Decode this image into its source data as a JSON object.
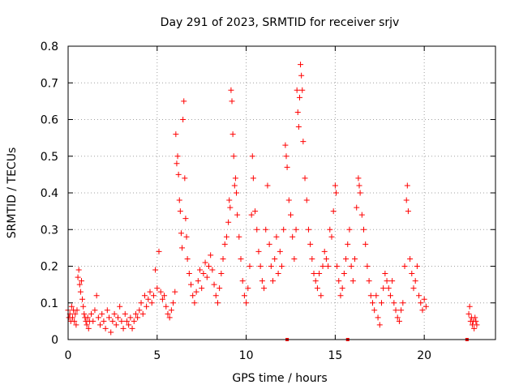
{
  "chart_data": {
    "type": "scatter",
    "title": "Day 291 of 2023, SRMTID for receiver srjv",
    "xlabel": "GPS time / hours",
    "ylabel": "SRMTID / TECUs",
    "xlim": [
      0,
      24
    ],
    "ylim": [
      0,
      0.8
    ],
    "xticks": [
      0,
      5,
      10,
      15,
      20
    ],
    "xtick_labels": [
      "0",
      "5",
      "10",
      "15",
      "20"
    ],
    "yticks": [
      0,
      0.1,
      0.2,
      0.3,
      0.4,
      0.5,
      0.6,
      0.7,
      0.8
    ],
    "ytick_labels": [
      "0",
      "0.1",
      "0.2",
      "0.3",
      "0.4",
      "0.5",
      "0.6",
      "0.7",
      "0.8"
    ],
    "grid": true,
    "marker": "+",
    "series": [
      {
        "name": "SRMTID",
        "color": "#ff0000",
        "points": [
          [
            0.0,
            0.08
          ],
          [
            0.05,
            0.06
          ],
          [
            0.1,
            0.07
          ],
          [
            0.15,
            0.05
          ],
          [
            0.2,
            0.09
          ],
          [
            0.25,
            0.06
          ],
          [
            0.3,
            0.08
          ],
          [
            0.35,
            0.05
          ],
          [
            0.4,
            0.07
          ],
          [
            0.45,
            0.04
          ],
          [
            0.5,
            0.08
          ],
          [
            0.55,
            0.17
          ],
          [
            0.6,
            0.19
          ],
          [
            0.65,
            0.15
          ],
          [
            0.7,
            0.13
          ],
          [
            0.75,
            0.16
          ],
          [
            0.8,
            0.11
          ],
          [
            0.85,
            0.09
          ],
          [
            0.9,
            0.07
          ],
          [
            0.95,
            0.06
          ],
          [
            1.0,
            0.05
          ],
          [
            1.05,
            0.04
          ],
          [
            1.1,
            0.06
          ],
          [
            1.15,
            0.03
          ],
          [
            1.2,
            0.05
          ],
          [
            1.3,
            0.07
          ],
          [
            1.4,
            0.05
          ],
          [
            1.5,
            0.08
          ],
          [
            1.6,
            0.12
          ],
          [
            1.7,
            0.06
          ],
          [
            1.8,
            0.04
          ],
          [
            1.9,
            0.07
          ],
          [
            2.0,
            0.05
          ],
          [
            2.1,
            0.03
          ],
          [
            2.2,
            0.08
          ],
          [
            2.3,
            0.06
          ],
          [
            2.4,
            0.02
          ],
          [
            2.5,
            0.05
          ],
          [
            2.6,
            0.07
          ],
          [
            2.7,
            0.04
          ],
          [
            2.8,
            0.06
          ],
          [
            2.9,
            0.09
          ],
          [
            3.0,
            0.05
          ],
          [
            3.1,
            0.03
          ],
          [
            3.2,
            0.07
          ],
          [
            3.3,
            0.05
          ],
          [
            3.4,
            0.04
          ],
          [
            3.5,
            0.06
          ],
          [
            3.6,
            0.03
          ],
          [
            3.7,
            0.05
          ],
          [
            3.8,
            0.07
          ],
          [
            3.9,
            0.06
          ],
          [
            4.0,
            0.08
          ],
          [
            4.1,
            0.1
          ],
          [
            4.2,
            0.07
          ],
          [
            4.3,
            0.12
          ],
          [
            4.4,
            0.09
          ],
          [
            4.5,
            0.11
          ],
          [
            4.6,
            0.13
          ],
          [
            4.7,
            0.1
          ],
          [
            4.8,
            0.12
          ],
          [
            4.9,
            0.19
          ],
          [
            5.0,
            0.14
          ],
          [
            5.1,
            0.24
          ],
          [
            5.2,
            0.13
          ],
          [
            5.3,
            0.11
          ],
          [
            5.4,
            0.12
          ],
          [
            5.5,
            0.09
          ],
          [
            5.6,
            0.07
          ],
          [
            5.7,
            0.06
          ],
          [
            5.8,
            0.08
          ],
          [
            5.9,
            0.1
          ],
          [
            6.0,
            0.13
          ],
          [
            6.05,
            0.56
          ],
          [
            6.1,
            0.48
          ],
          [
            6.15,
            0.5
          ],
          [
            6.2,
            0.45
          ],
          [
            6.25,
            0.38
          ],
          [
            6.3,
            0.35
          ],
          [
            6.35,
            0.29
          ],
          [
            6.4,
            0.25
          ],
          [
            6.45,
            0.6
          ],
          [
            6.5,
            0.65
          ],
          [
            6.55,
            0.44
          ],
          [
            6.6,
            0.33
          ],
          [
            6.65,
            0.28
          ],
          [
            6.7,
            0.22
          ],
          [
            6.8,
            0.18
          ],
          [
            6.9,
            0.15
          ],
          [
            7.0,
            0.12
          ],
          [
            7.1,
            0.1
          ],
          [
            7.2,
            0.13
          ],
          [
            7.3,
            0.16
          ],
          [
            7.4,
            0.19
          ],
          [
            7.5,
            0.14
          ],
          [
            7.6,
            0.18
          ],
          [
            7.7,
            0.21
          ],
          [
            7.8,
            0.17
          ],
          [
            7.9,
            0.2
          ],
          [
            8.0,
            0.23
          ],
          [
            8.1,
            0.19
          ],
          [
            8.2,
            0.15
          ],
          [
            8.3,
            0.12
          ],
          [
            8.4,
            0.1
          ],
          [
            8.5,
            0.14
          ],
          [
            8.6,
            0.18
          ],
          [
            8.7,
            0.22
          ],
          [
            8.8,
            0.26
          ],
          [
            8.9,
            0.28
          ],
          [
            9.0,
            0.32
          ],
          [
            9.05,
            0.38
          ],
          [
            9.1,
            0.36
          ],
          [
            9.15,
            0.68
          ],
          [
            9.2,
            0.65
          ],
          [
            9.25,
            0.56
          ],
          [
            9.3,
            0.5
          ],
          [
            9.35,
            0.42
          ],
          [
            9.4,
            0.44
          ],
          [
            9.45,
            0.4
          ],
          [
            9.5,
            0.34
          ],
          [
            9.6,
            0.28
          ],
          [
            9.7,
            0.22
          ],
          [
            9.8,
            0.16
          ],
          [
            9.9,
            0.12
          ],
          [
            10.0,
            0.1
          ],
          [
            10.1,
            0.14
          ],
          [
            10.2,
            0.2
          ],
          [
            10.3,
            0.34
          ],
          [
            10.35,
            0.5
          ],
          [
            10.4,
            0.44
          ],
          [
            10.5,
            0.35
          ],
          [
            10.6,
            0.3
          ],
          [
            10.7,
            0.24
          ],
          [
            10.8,
            0.2
          ],
          [
            10.9,
            0.16
          ],
          [
            11.0,
            0.14
          ],
          [
            11.1,
            0.3
          ],
          [
            11.2,
            0.42
          ],
          [
            11.3,
            0.26
          ],
          [
            11.4,
            0.2
          ],
          [
            11.5,
            0.16
          ],
          [
            11.6,
            0.22
          ],
          [
            11.7,
            0.28
          ],
          [
            11.8,
            0.18
          ],
          [
            11.9,
            0.24
          ],
          [
            12.0,
            0.2
          ],
          [
            12.1,
            0.3
          ],
          [
            12.2,
            0.53
          ],
          [
            12.25,
            0.5
          ],
          [
            12.3,
            0.47
          ],
          [
            12.4,
            0.38
          ],
          [
            12.5,
            0.34
          ],
          [
            12.6,
            0.28
          ],
          [
            12.7,
            0.22
          ],
          [
            12.8,
            0.3
          ],
          [
            12.85,
            0.68
          ],
          [
            12.9,
            0.62
          ],
          [
            12.95,
            0.58
          ],
          [
            13.0,
            0.66
          ],
          [
            13.05,
            0.75
          ],
          [
            13.1,
            0.72
          ],
          [
            13.15,
            0.68
          ],
          [
            13.2,
            0.54
          ],
          [
            13.3,
            0.44
          ],
          [
            13.4,
            0.38
          ],
          [
            13.5,
            0.3
          ],
          [
            13.6,
            0.26
          ],
          [
            13.7,
            0.22
          ],
          [
            13.8,
            0.18
          ],
          [
            13.9,
            0.16
          ],
          [
            14.0,
            0.14
          ],
          [
            14.1,
            0.18
          ],
          [
            14.2,
            0.12
          ],
          [
            14.3,
            0.2
          ],
          [
            14.4,
            0.24
          ],
          [
            14.5,
            0.22
          ],
          [
            14.6,
            0.2
          ],
          [
            14.7,
            0.3
          ],
          [
            14.8,
            0.28
          ],
          [
            14.9,
            0.35
          ],
          [
            15.0,
            0.42
          ],
          [
            15.05,
            0.4
          ],
          [
            15.1,
            0.2
          ],
          [
            15.2,
            0.16
          ],
          [
            15.3,
            0.12
          ],
          [
            15.4,
            0.14
          ],
          [
            15.5,
            0.18
          ],
          [
            15.6,
            0.22
          ],
          [
            15.7,
            0.26
          ],
          [
            15.8,
            0.3
          ],
          [
            15.9,
            0.2
          ],
          [
            16.0,
            0.16
          ],
          [
            16.1,
            0.22
          ],
          [
            16.2,
            0.36
          ],
          [
            16.3,
            0.44
          ],
          [
            16.35,
            0.42
          ],
          [
            16.4,
            0.4
          ],
          [
            16.5,
            0.34
          ],
          [
            16.6,
            0.3
          ],
          [
            16.7,
            0.26
          ],
          [
            16.8,
            0.2
          ],
          [
            16.9,
            0.16
          ],
          [
            17.0,
            0.12
          ],
          [
            17.1,
            0.1
          ],
          [
            17.2,
            0.08
          ],
          [
            17.3,
            0.12
          ],
          [
            17.4,
            0.06
          ],
          [
            17.5,
            0.04
          ],
          [
            17.6,
            0.1
          ],
          [
            17.7,
            0.14
          ],
          [
            17.8,
            0.18
          ],
          [
            17.9,
            0.16
          ],
          [
            18.0,
            0.14
          ],
          [
            18.1,
            0.12
          ],
          [
            18.2,
            0.16
          ],
          [
            18.3,
            0.1
          ],
          [
            18.4,
            0.08
          ],
          [
            18.5,
            0.06
          ],
          [
            18.6,
            0.05
          ],
          [
            18.7,
            0.08
          ],
          [
            18.8,
            0.1
          ],
          [
            18.9,
            0.2
          ],
          [
            19.0,
            0.38
          ],
          [
            19.05,
            0.42
          ],
          [
            19.1,
            0.35
          ],
          [
            19.2,
            0.22
          ],
          [
            19.3,
            0.18
          ],
          [
            19.4,
            0.14
          ],
          [
            19.5,
            0.16
          ],
          [
            19.6,
            0.2
          ],
          [
            19.7,
            0.12
          ],
          [
            19.8,
            0.1
          ],
          [
            19.9,
            0.08
          ],
          [
            20.0,
            0.11
          ],
          [
            20.1,
            0.09
          ],
          [
            22.5,
            0.07
          ],
          [
            22.55,
            0.09
          ],
          [
            22.6,
            0.05
          ],
          [
            22.65,
            0.06
          ],
          [
            22.7,
            0.04
          ],
          [
            22.75,
            0.05
          ],
          [
            22.8,
            0.03
          ],
          [
            22.85,
            0.06
          ],
          [
            22.9,
            0.05
          ],
          [
            22.95,
            0.04
          ]
        ]
      }
    ],
    "zero_markers": [
      12.3,
      15.7,
      22.4
    ]
  }
}
